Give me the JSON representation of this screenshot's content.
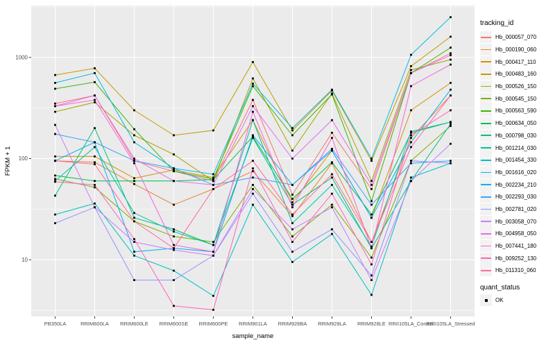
{
  "chart_data": {
    "type": "line",
    "xlabel": "sample_name",
    "ylabel": "FPKM + 1",
    "y_scale": "log10",
    "y_breaks": [
      10,
      100,
      1000
    ],
    "y_break_labels": [
      "10",
      "100",
      "1000"
    ],
    "y_minor_breaks": [
      3.162,
      31.62,
      316.2,
      3162
    ],
    "ylim": [
      2.75,
      3300
    ],
    "grid": "on",
    "legend_position": "right",
    "panel_background": "#EBEBEB",
    "gridline_color": "#FFFFFF",
    "point_color": "#000000",
    "categories": [
      "PB350LA",
      "RRIM600LA",
      "RRIM600LE",
      "RRIM600SE",
      "RRIM600PE",
      "RRIM901LA",
      "RRIM928BA",
      "RRIM928LA",
      "RRIM928LE",
      "RRII105LA_Control",
      "RRII105LA_Stressed"
    ],
    "series": [
      {
        "name": "Hb_000057_070",
        "color": "#F8766D",
        "values": [
          350,
          420,
          95,
          75,
          60,
          380,
          44,
          180,
          50,
          700,
          1100
        ]
      },
      {
        "name": "Hb_000190_060",
        "color": "#EA8331",
        "values": [
          95,
          92,
          56,
          35,
          50,
          75,
          27,
          90,
          15,
          160,
          420
        ]
      },
      {
        "name": "Hb_000417_110",
        "color": "#D89000",
        "values": [
          105,
          105,
          64,
          77,
          65,
          240,
          37,
          120,
          26,
          300,
          560
        ]
      },
      {
        "name": "Hb_000483_160",
        "color": "#C09B00",
        "values": [
          670,
          780,
          300,
          170,
          190,
          900,
          190,
          470,
          95,
          820,
          1600
        ]
      },
      {
        "name": "Hb_000526_150",
        "color": "#A3A500",
        "values": [
          290,
          360,
          170,
          110,
          60,
          620,
          120,
          440,
          60,
          750,
          950
        ]
      },
      {
        "name": "Hb_000545_150",
        "color": "#7CAE00",
        "values": [
          63,
          52,
          24,
          17,
          15,
          55,
          17,
          35,
          10.5,
          95,
          210
        ]
      },
      {
        "name": "Hb_000563_590",
        "color": "#39B600",
        "values": [
          490,
          570,
          195,
          75,
          63,
          520,
          170,
          430,
          38,
          700,
          1250
        ]
      },
      {
        "name": "Hb_000634_050",
        "color": "#00BB4E",
        "values": [
          68,
          60,
          60,
          60,
          62,
          165,
          40,
          92,
          28,
          180,
          230
        ]
      },
      {
        "name": "Hb_000798_030",
        "color": "#00BF7D",
        "values": [
          43,
          200,
          26,
          20,
          14,
          160,
          35,
          65,
          13,
          60,
          220
        ]
      },
      {
        "name": "Hb_001214_030",
        "color": "#00C1A3",
        "values": [
          60,
          130,
          29,
          19,
          14,
          240,
          23,
          55,
          13.5,
          185,
          230
        ]
      },
      {
        "name": "Hb_001454_330",
        "color": "#00BFC4",
        "values": [
          28,
          36,
          11,
          7.8,
          4.4,
          35,
          9.5,
          18,
          4.5,
          65,
          90
        ]
      },
      {
        "name": "Hb_001616_020",
        "color": "#00BAE0",
        "values": [
          560,
          700,
          145,
          80,
          70,
          550,
          200,
          480,
          100,
          1060,
          2500
        ]
      },
      {
        "name": "Hb_002234_210",
        "color": "#00B0F6",
        "values": [
          95,
          145,
          12,
          13,
          12,
          170,
          55,
          120,
          26,
          145,
          480
        ]
      },
      {
        "name": "Hb_002293_030",
        "color": "#35A2FF",
        "values": [
          175,
          145,
          95,
          80,
          55,
          65,
          55,
          125,
          35,
          90,
          95
        ]
      },
      {
        "name": "Hb_002781_020",
        "color": "#9590FF",
        "values": [
          23,
          33,
          6.3,
          6.3,
          11,
          45,
          12,
          20,
          7,
          95,
          90
        ]
      },
      {
        "name": "Hb_003058_070",
        "color": "#C77CFF",
        "values": [
          215,
          33,
          15,
          12.5,
          11,
          50,
          20,
          33,
          6.3,
          60,
          140
        ]
      },
      {
        "name": "Hb_004958_050",
        "color": "#E76BF3",
        "values": [
          330,
          420,
          100,
          60,
          55,
          330,
          100,
          240,
          55,
          700,
          1050
        ]
      },
      {
        "name": "Hb_007441_180",
        "color": "#FA62DB",
        "values": [
          330,
          380,
          90,
          14,
          12,
          290,
          33,
          160,
          13,
          520,
          850
        ]
      },
      {
        "name": "Hb_009252_130",
        "color": "#FF62BC",
        "values": [
          59,
          55,
          16,
          3.5,
          3.2,
          80,
          15,
          45,
          9,
          170,
          300
        ]
      },
      {
        "name": "Hb_011310_060",
        "color": "#FF6A98",
        "values": [
          95,
          88,
          24,
          13,
          50,
          95,
          28,
          70,
          15,
          130,
          420
        ]
      }
    ],
    "legend": {
      "color_title": "tracking_id",
      "shape_title": "quant_status",
      "shape_items": [
        {
          "label": "OK",
          "marker": "black-square"
        }
      ]
    }
  }
}
